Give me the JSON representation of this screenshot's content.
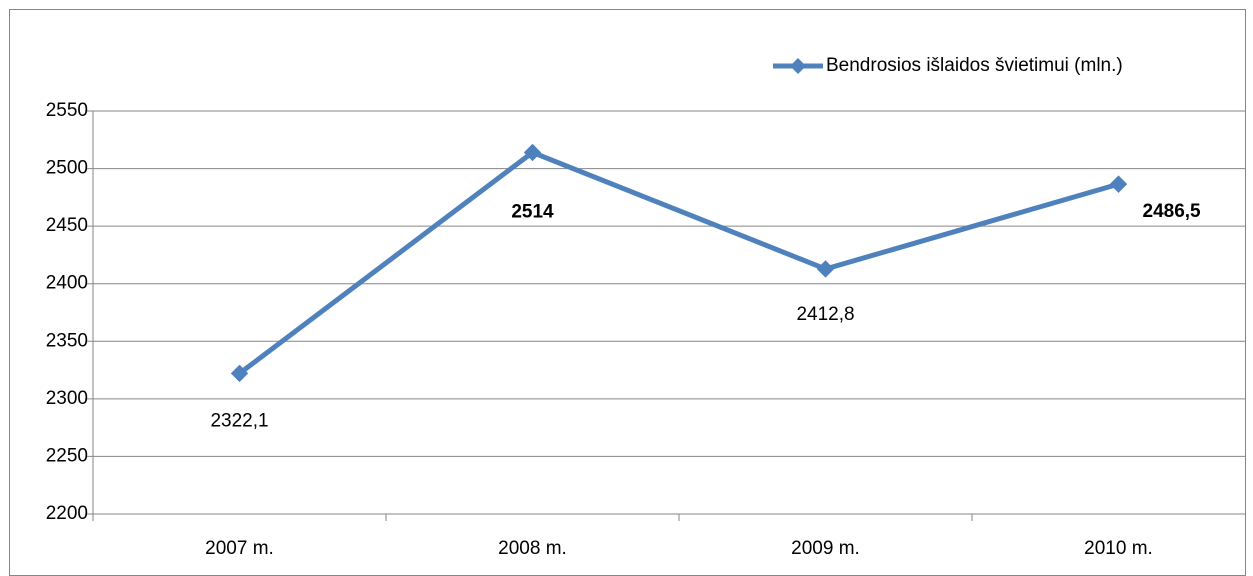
{
  "chart_data": {
    "type": "line",
    "categories": [
      "2007 m.",
      "2008 m.",
      "2009 m.",
      "2010 m."
    ],
    "series": [
      {
        "name": "Bendrosios išlaidos švietimui (mln.)",
        "color": "#4f81bd",
        "values": [
          2322.1,
          2514,
          2412.8,
          2486.5
        ],
        "value_labels": [
          "2322,1",
          "2514",
          "2412,8",
          "2486,5"
        ]
      }
    ],
    "ylim": [
      2200,
      2550
    ],
    "yticks": [
      2200,
      2250,
      2300,
      2350,
      2400,
      2450,
      2500,
      2550
    ],
    "grid": true,
    "legend": "top-right"
  }
}
